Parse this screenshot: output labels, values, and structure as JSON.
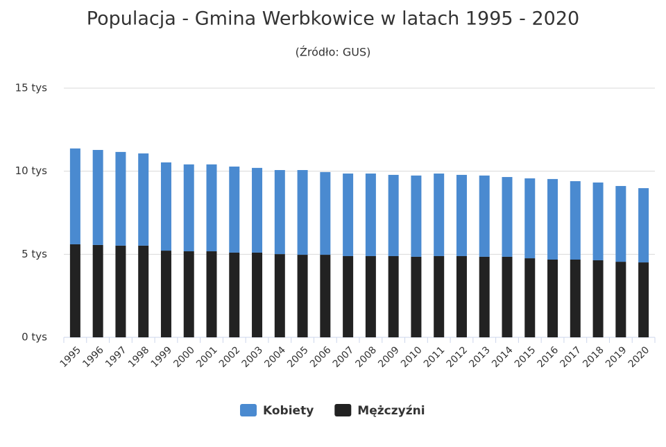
{
  "chart_data": {
    "type": "stacked_bar",
    "title": "Populacja - Gmina Werbkowice w latach 1995 - 2020",
    "subtitle": "(Źródło: GUS)",
    "categories": [
      "1995",
      "1996",
      "1997",
      "1998",
      "1999",
      "2000",
      "2001",
      "2002",
      "2003",
      "2004",
      "2005",
      "2006",
      "2007",
      "2008",
      "2009",
      "2010",
      "2011",
      "2012",
      "2013",
      "2014",
      "2015",
      "2016",
      "2017",
      "2018",
      "2019",
      "2020"
    ],
    "series": [
      {
        "name": "Kobiety",
        "color": "#4a8ad0",
        "values": [
          5770,
          5720,
          5640,
          5550,
          5310,
          5230,
          5230,
          5180,
          5100,
          5060,
          5100,
          4980,
          4970,
          4970,
          4890,
          4890,
          4970,
          4890,
          4890,
          4800,
          4810,
          4850,
          4720,
          4680,
          4560,
          4470
        ]
      },
      {
        "name": "Mężczyźni",
        "color": "#222222",
        "values": [
          5600,
          5560,
          5520,
          5520,
          5220,
          5180,
          5180,
          5100,
          5100,
          5010,
          4970,
          4970,
          4890,
          4890,
          4890,
          4850,
          4890,
          4890,
          4850,
          4850,
          4760,
          4680,
          4680,
          4640,
          4550,
          4510
        ]
      }
    ],
    "ylim": [
      0,
      15000
    ],
    "yticks": [
      {
        "value": 0,
        "label": "0 tys"
      },
      {
        "value": 5000,
        "label": "5 tys"
      },
      {
        "value": 10000,
        "label": "10 tys"
      },
      {
        "value": 15000,
        "label": "15 tys"
      }
    ],
    "grid": true
  }
}
